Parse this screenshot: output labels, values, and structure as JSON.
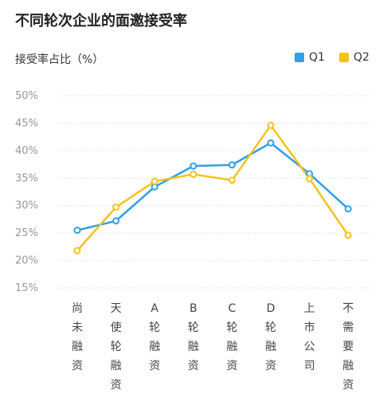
{
  "chart_data": {
    "type": "line",
    "title": "不同轮次企业的面邀接受率",
    "ylabel": "接受率占比（%）",
    "xlabel": "",
    "categories": [
      "尚未融资",
      "天使轮融资",
      "A轮融资",
      "B轮融资",
      "C轮融资",
      "D轮融资",
      "上市公司",
      "不需要融资"
    ],
    "ylim": [
      15,
      50
    ],
    "yticks": [
      15,
      20,
      25,
      30,
      35,
      40,
      45,
      50
    ],
    "ytick_labels": [
      "15%",
      "20%",
      "25%",
      "30%",
      "35%",
      "40%",
      "45%",
      "50%"
    ],
    "grid": true,
    "legend_position": "top-right",
    "series": [
      {
        "name": "Q1",
        "color": "#2f9fe8",
        "values": [
          25.5,
          27.2,
          33.4,
          37.2,
          37.4,
          41.4,
          35.8,
          29.4
        ]
      },
      {
        "name": "Q2",
        "color": "#f6c21a",
        "values": [
          21.8,
          29.7,
          34.4,
          35.7,
          34.6,
          44.6,
          34.9,
          24.6
        ]
      }
    ]
  }
}
